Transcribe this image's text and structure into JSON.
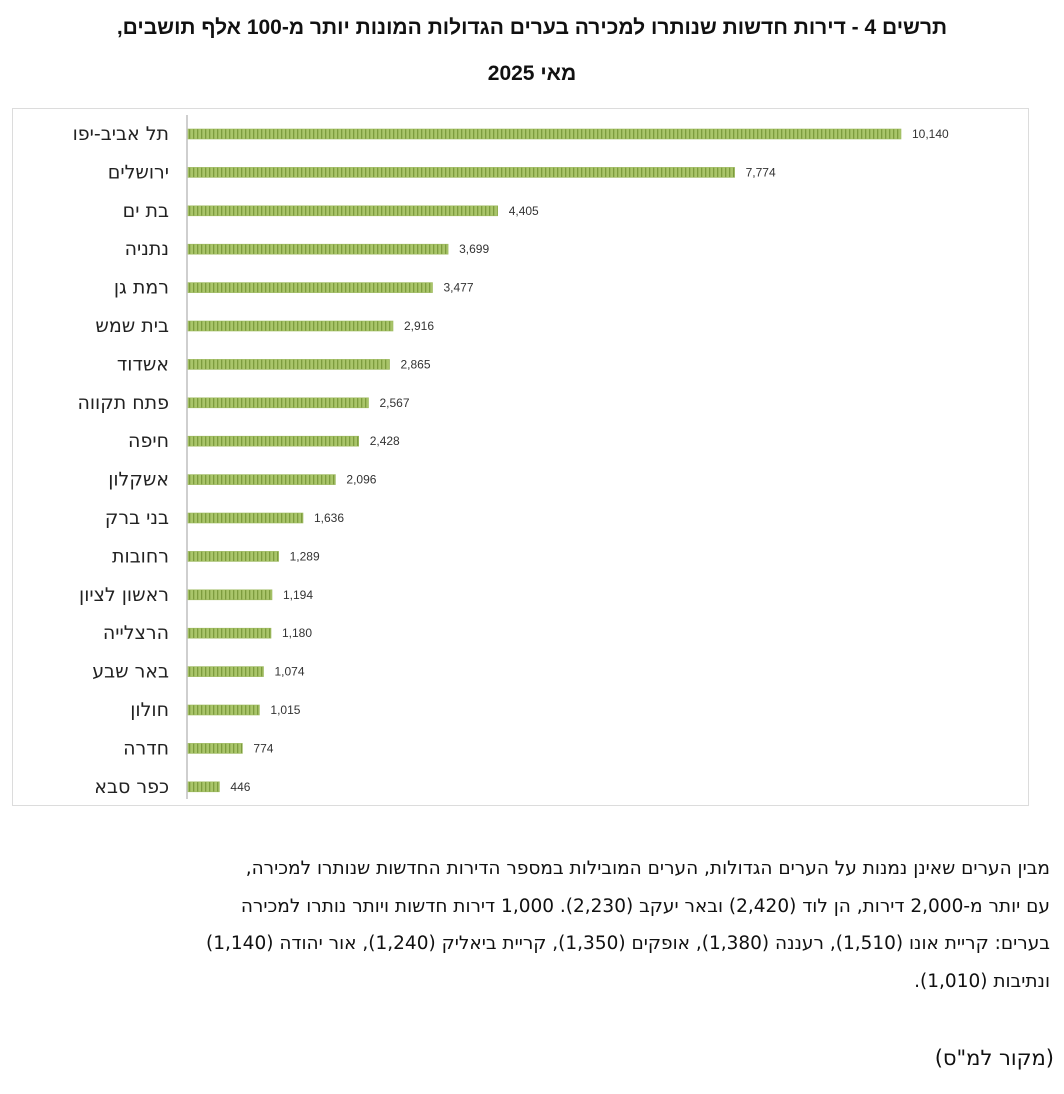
{
  "chart_data": {
    "type": "bar",
    "orientation": "horizontal",
    "title": "תרשים 4 - דירות חדשות שנותרו למכירה בערים הגדולות המונות יותר מ-100 אלף תושבים,",
    "subtitle": "מאי 2025",
    "categories": [
      "תל אביב-יפו",
      "ירושלים",
      "בת ים",
      "נתניה",
      "רמת גן",
      "בית שמש",
      "אשדוד",
      "פתח תקווה",
      "חיפה",
      "אשקלון",
      "בני ברק",
      "רחובות",
      "ראשון לציון",
      "הרצלייה",
      "באר שבע",
      "חולון",
      "חדרה",
      "כפר סבא"
    ],
    "values": [
      10140,
      7774,
      4405,
      3699,
      3477,
      2916,
      2865,
      2567,
      2428,
      2096,
      1636,
      1289,
      1194,
      1180,
      1074,
      1015,
      774,
      446
    ],
    "value_labels": [
      "10,140",
      "7,774",
      "4,405",
      "3,699",
      "3,477",
      "2,916",
      "2,865",
      "2,567",
      "2,428",
      "2,096",
      "1,636",
      "1,289",
      "1,194",
      "1,180",
      "1,074",
      "1,015",
      "774",
      "446"
    ],
    "xlim": [
      0,
      10140
    ],
    "grid": false,
    "legend": "none",
    "bar_color": "#a9c56a",
    "bar_stripe_color": "#7d9c3e"
  },
  "text": {
    "paragraph_lines": [
      "מבין הערים שאינן נמנות על הערים הגדולות, הערים המובילות במספר הדירות החדשות שנותרו למכירה,",
      "עם יותר מ-2,000 דירות, הן לוד (2,420) ובאר יעקב (2,230). 1,000 דירות חדשות ויותר נותרו למכירה",
      "בערים: קריית אונו (1,510), רעננה (1,380), אופקים (1,350), קריית ביאליק (1,240), אור יהודה (1,140)",
      "ונתיבות (1,010)."
    ],
    "source": "(מקור למ\"ס)"
  }
}
